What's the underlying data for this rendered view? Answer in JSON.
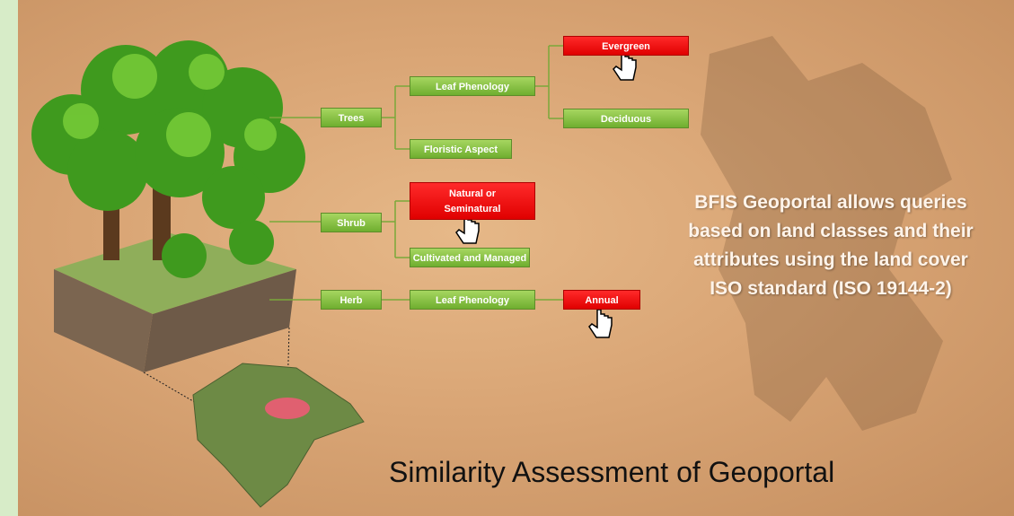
{
  "nodes": {
    "trees": "Trees",
    "shrub": "Shrub",
    "herb": "Herb",
    "trees_leaf_phenology": "Leaf Phenology",
    "floristic_aspect": "Floristic Aspect",
    "evergreen": "Evergreen",
    "deciduous": "Deciduous",
    "natural_or_seminatural": "Natural or Seminatural",
    "cultivated_and_managed": "Cultivated and Managed",
    "herb_leaf_phenology": "Leaf Phenology",
    "annual": "Annual"
  },
  "description": {
    "lines": [
      "BFIS Geoportal allows queries",
      "based on land classes and their",
      "attributes using the land cover",
      "ISO standard (ISO 19144-2)"
    ]
  },
  "caption": "Similarity Assessment of Geoportal"
}
